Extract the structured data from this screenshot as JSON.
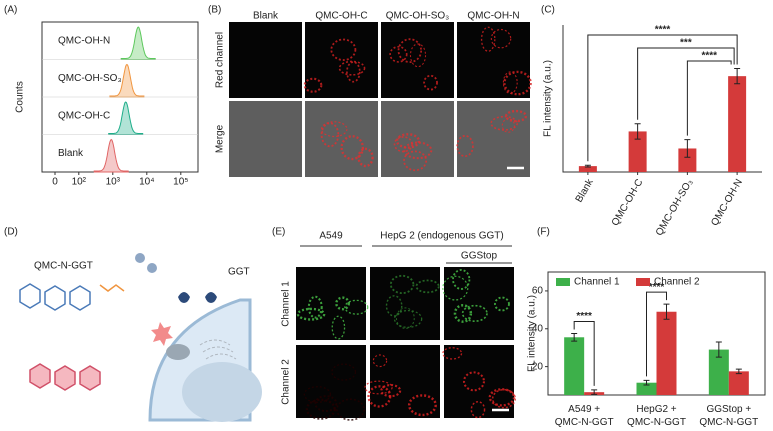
{
  "panel_labels": [
    "(A)",
    "(B)",
    "(C)",
    "(D)",
    "(E)",
    "(F)"
  ],
  "chart_data": [
    {
      "type": "ridgeline",
      "y_label": "Counts",
      "xscale": "biexponential",
      "xlim": [
        0,
        300000
      ],
      "xticks": [
        {
          "value": 0,
          "label": "0"
        },
        {
          "value": 100,
          "label": "10²"
        },
        {
          "value": 1000,
          "label": "10³"
        },
        {
          "value": 10000,
          "label": "10⁴"
        },
        {
          "value": 100000,
          "label": "10⁵"
        }
      ],
      "series": [
        {
          "name": "QMC-OH-N",
          "color": "#5cc85c",
          "peak": 5600
        },
        {
          "name": "QMC-OH-SO₃",
          "color": "#f0953f",
          "peak": 2600
        },
        {
          "name": "QMC-OH-C",
          "color": "#1fae8a",
          "peak": 2400
        },
        {
          "name": "Blank",
          "color": "#e06565",
          "peak": 900
        }
      ]
    },
    {
      "type": "bar",
      "y_label": "FL intensity (a.u.)",
      "categories": [
        "Blank",
        "QMC-OH-C",
        "QMC-OH-SO₃",
        "QMC-OH-N"
      ],
      "values": [
        1.0,
        6.9,
        4.0,
        16.3
      ],
      "errors": [
        0.15,
        1.3,
        1.5,
        1.3
      ],
      "color": "#d43a3a",
      "ylim": [
        0,
        25
      ],
      "significance": [
        {
          "from": 0,
          "to": 3,
          "label": "****"
        },
        {
          "from": 1,
          "to": 3,
          "label": "***"
        },
        {
          "from": 2,
          "to": 3,
          "label": "****"
        }
      ]
    },
    {
      "type": "grouped_bar",
      "y_label": "FL intensity (a.u.)",
      "categories": [
        "A549 + QMC-N-GGT",
        "HepG2 + QMC-N-GGT",
        "GGStop + QMC-N-GGT"
      ],
      "series": [
        {
          "name": "Channel 1",
          "color": "#3db04a",
          "values": [
            35.5,
            11.5,
            29.0
          ],
          "errors": [
            2.0,
            1.2,
            4.0
          ]
        },
        {
          "name": "Channel 2",
          "color": "#d43a3a",
          "values": [
            6.5,
            49.0,
            17.5
          ],
          "errors": [
            1.2,
            4.0,
            1.2
          ]
        }
      ],
      "ylim": [
        5,
        70
      ],
      "yticks": [
        20,
        40,
        60
      ],
      "legend": "top",
      "significance": [
        {
          "category": 0,
          "label": "****"
        },
        {
          "category": 1,
          "label": "****"
        }
      ]
    }
  ],
  "microscopy_b": {
    "columns": [
      "Blank",
      "QMC-OH-C",
      "QMC-OH-SO₃",
      "QMC-OH-N"
    ],
    "rows": [
      "Red channel",
      "Merge"
    ]
  },
  "diagram_d": {
    "probe": "QMC-N-GGT",
    "enzyme": "GGT"
  },
  "microscopy_e": {
    "groups": [
      "A549",
      "HepG 2 (endogenous GGT)"
    ],
    "inhibitor": "GGStop",
    "rows": [
      "Channel 1",
      "Channel 2"
    ]
  }
}
